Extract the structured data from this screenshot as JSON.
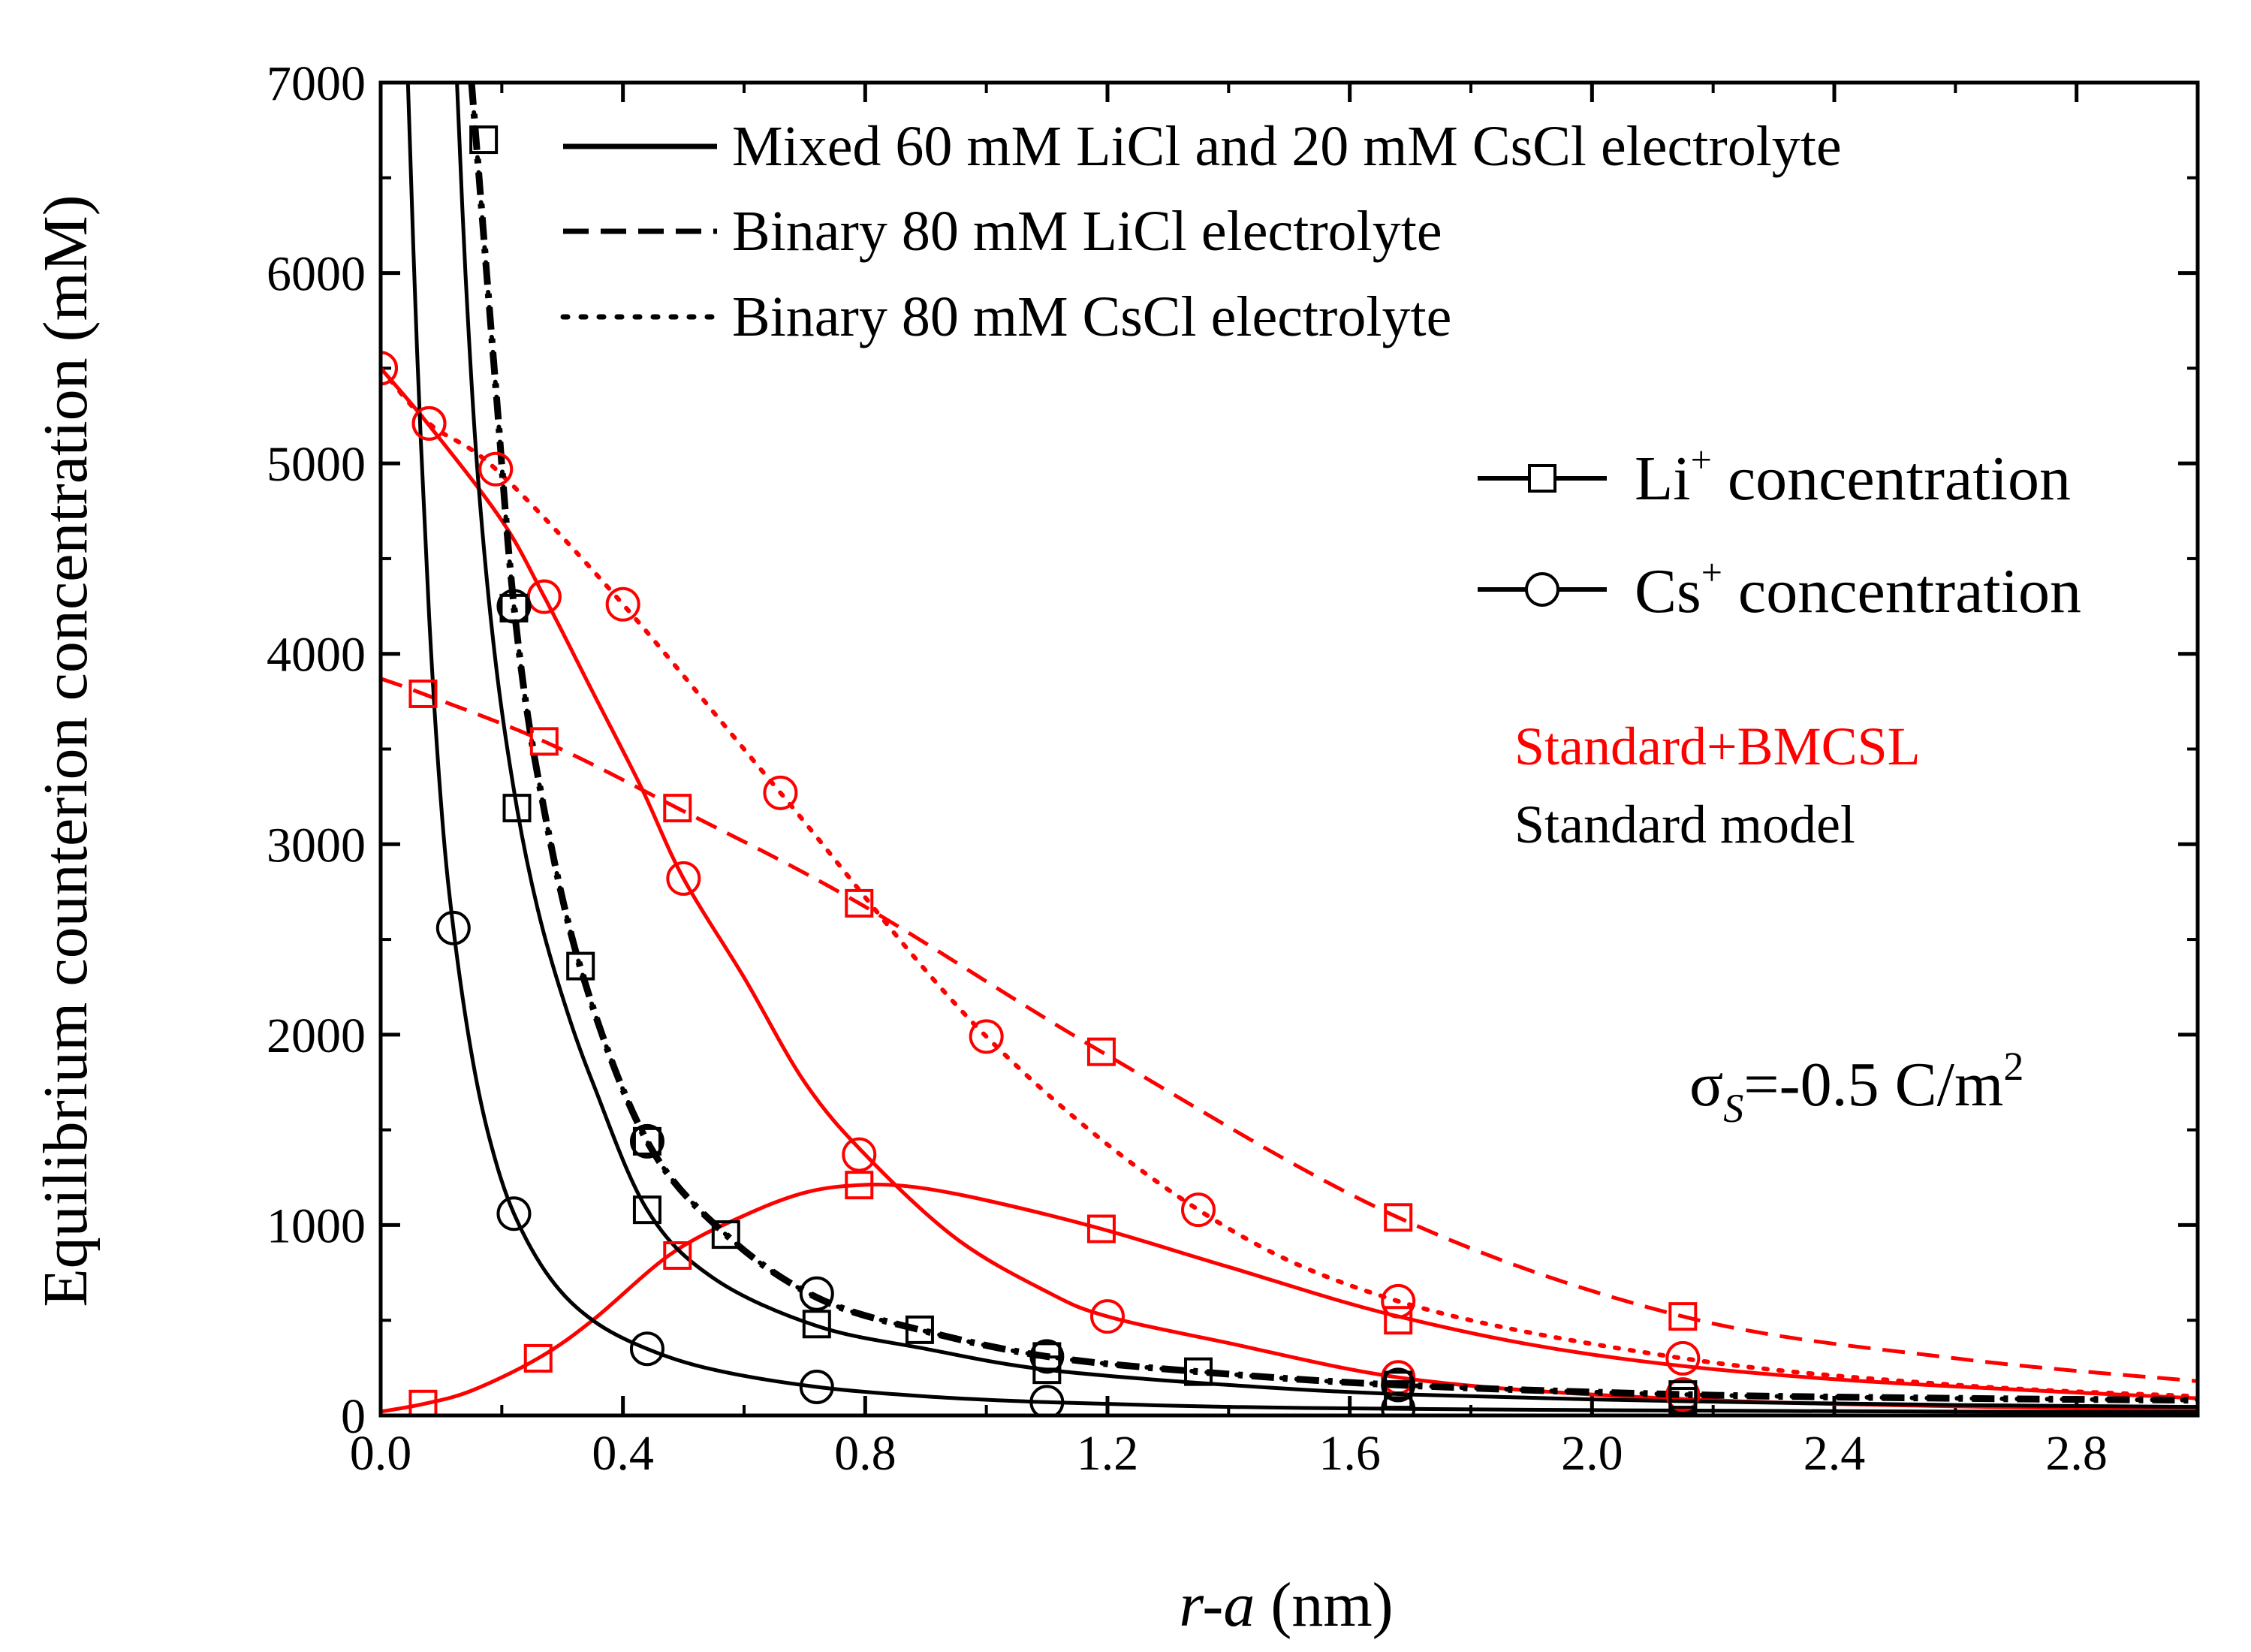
{
  "chart_data": {
    "type": "line",
    "ylabel": "Equilibrium counterion concentration (mM)",
    "xlabel": {
      "italic": "r-a",
      "rest": " (nm)"
    },
    "xlim": [
      0,
      3.0
    ],
    "ylim": [
      0,
      7000
    ],
    "xticks": [
      0.0,
      0.4,
      0.8,
      1.2,
      1.6,
      2.0,
      2.4,
      2.8
    ],
    "xtick_labels": [
      "0.0",
      "0.4",
      "0.8",
      "1.2",
      "1.6",
      "2.0",
      "2.4",
      "2.8"
    ],
    "yticks": [
      0,
      1000,
      2000,
      3000,
      4000,
      5000,
      6000,
      7000
    ],
    "ytick_labels": [
      "0",
      "1000",
      "2000",
      "3000",
      "4000",
      "5000",
      "6000",
      "7000"
    ],
    "legend_linestyles": [
      {
        "style": "solid",
        "label": "Mixed 60 mM LiCl and 20 mM CsCl electrolyte"
      },
      {
        "style": "dashed",
        "label": "Binary 80 mM LiCl electrolyte"
      },
      {
        "style": "dotted",
        "label": "Binary 80 mM CsCl electrolyte"
      }
    ],
    "legend_markers": [
      {
        "marker": "square",
        "label_main": "Li",
        "label_sup": "+",
        "label_rest": " concentration"
      },
      {
        "marker": "circle",
        "label_main": "Cs",
        "label_sup": "+",
        "label_rest": " concentration"
      }
    ],
    "model_labels": [
      {
        "text": "Standard+BMCSL",
        "color": "#ff0000"
      },
      {
        "text": "Standard model",
        "color": "#000000"
      }
    ],
    "annotation": {
      "sigma": "σ",
      "sub": "S",
      "value": "=-0.5 C/m",
      "sup": "2"
    },
    "series": [
      {
        "name": "Mixed Li+ (Standard+BMCSL)",
        "color": "#ff0000",
        "dash": "solid",
        "marker": "square",
        "x": [
          0,
          0.07,
          0.15,
          0.26,
          0.35,
          0.48,
          0.6,
          0.7,
          0.79,
          0.88,
          1.0,
          1.19,
          1.4,
          1.68,
          2.0,
          2.4,
          3.0
        ],
        "y": [
          20,
          60,
          130,
          300,
          500,
          850,
          1050,
          1170,
          1210,
          1200,
          1130,
          980,
          780,
          520,
          320,
          190,
          90
        ],
        "marker_x": [
          0.07,
          0.26,
          0.49,
          0.79,
          1.19,
          1.68
        ],
        "marker_y": [
          60,
          300,
          840,
          1210,
          980,
          500
        ]
      },
      {
        "name": "Mixed Cs+ (Standard+BMCSL)",
        "color": "#ff0000",
        "dash": "solid",
        "marker": "circle",
        "x": [
          0,
          0.08,
          0.2,
          0.27,
          0.35,
          0.43,
          0.5,
          0.6,
          0.7,
          0.8,
          0.95,
          1.1,
          1.2,
          1.4,
          1.68,
          2.0,
          2.4,
          3.0
        ],
        "y": [
          5500,
          5200,
          4700,
          4300,
          3800,
          3300,
          2820,
          2300,
          1750,
          1370,
          930,
          650,
          520,
          380,
          200,
          110,
          60,
          30
        ],
        "marker_x": [
          0.0,
          0.08,
          0.27,
          0.5,
          0.79,
          1.2,
          1.68,
          2.15
        ],
        "marker_y": [
          5500,
          5210,
          4300,
          2820,
          1370,
          520,
          200,
          110
        ]
      },
      {
        "name": "Binary LiCl Li+ (Standard+BMCSL)",
        "color": "#ff0000",
        "dash": "dashed",
        "marker": "square",
        "x": [
          0,
          0.07,
          0.27,
          0.49,
          0.79,
          1.19,
          1.68,
          2.15,
          2.6,
          3.0
        ],
        "y": [
          3870,
          3790,
          3540,
          3190,
          2690,
          1910,
          1040,
          520,
          300,
          180
        ],
        "marker_x": [
          0.07,
          0.27,
          0.49,
          0.79,
          1.19,
          1.68,
          2.15
        ],
        "marker_y": [
          3790,
          3540,
          3190,
          2690,
          1910,
          1040,
          520
        ]
      },
      {
        "name": "Binary CsCl Cs+ (Standard+BMCSL)",
        "color": "#ff0000",
        "dash": "dotted",
        "marker": "circle",
        "x": [
          0,
          0.08,
          0.19,
          0.4,
          0.66,
          1.0,
          1.35,
          1.68,
          2.15,
          2.6,
          3.0
        ],
        "y": [
          5500,
          5210,
          4970,
          4260,
          3270,
          1990,
          1080,
          600,
          300,
          160,
          100
        ],
        "marker_x": [
          0.0,
          0.08,
          0.19,
          0.27,
          0.4,
          0.66,
          1.0,
          1.35,
          1.68,
          2.15
        ],
        "marker_y": [
          5500,
          5210,
          4970,
          4300,
          4260,
          3270,
          1990,
          1080,
          600,
          300
        ]
      },
      {
        "name": "Mixed Li+ (Standard model)",
        "color": "#000000",
        "dash": "solid",
        "marker": "square",
        "x": [
          0.126,
          0.14,
          0.16,
          0.19,
          0.225,
          0.26,
          0.3,
          0.35,
          0.44,
          0.55,
          0.72,
          0.9,
          1.1,
          1.4,
          1.7,
          2.15,
          2.6,
          3.0
        ],
        "y": [
          7000,
          6000,
          4950,
          3950,
          3190,
          2650,
          2200,
          1750,
          1080,
          720,
          470,
          350,
          240,
          160,
          110,
          75,
          55,
          45
        ],
        "marker_x": [
          0.225,
          0.44,
          0.72,
          1.1,
          1.68,
          2.15
        ],
        "marker_y": [
          3190,
          1080,
          480,
          240,
          110,
          75
        ]
      },
      {
        "name": "Mixed Cs+ (Standard model)",
        "color": "#000000",
        "dash": "solid",
        "marker": "circle",
        "x": [
          0.045,
          0.06,
          0.08,
          0.1,
          0.12,
          0.15,
          0.18,
          0.22,
          0.28,
          0.35,
          0.44,
          0.55,
          0.72,
          0.9,
          1.1,
          1.4,
          1.68,
          2.0,
          2.6,
          3.0
        ],
        "y": [
          7000,
          5600,
          4200,
          3200,
          2560,
          1900,
          1450,
          1060,
          720,
          500,
          350,
          240,
          150,
          100,
          70,
          45,
          35,
          28,
          20,
          18
        ],
        "marker_x": [
          0.12,
          0.22,
          0.44,
          0.72,
          1.1,
          1.68
        ],
        "marker_y": [
          2560,
          1060,
          350,
          150,
          70,
          35
        ]
      },
      {
        "name": "Binary LiCl Li+ (Standard model)",
        "color": "#000000",
        "dash": "dashdot",
        "marker": "square",
        "x": [
          0.15,
          0.17,
          0.19,
          0.22,
          0.26,
          0.33,
          0.44,
          0.57,
          0.72,
          0.89,
          1.1,
          1.35,
          1.68,
          2.15,
          2.6,
          3.0
        ],
        "y": [
          7000,
          6200,
          5400,
          4250,
          3350,
          2350,
          1440,
          950,
          620,
          450,
          310,
          230,
          160,
          110,
          90,
          80
        ],
        "marker_x": [
          0.17,
          0.22,
          0.33,
          0.44,
          0.57,
          0.89,
          1.1,
          1.35,
          1.68,
          2.15
        ],
        "marker_y": [
          6700,
          4240,
          2360,
          1440,
          950,
          450,
          310,
          230,
          160,
          110
        ]
      },
      {
        "name": "Binary CsCl Cs+ (Standard model)",
        "color": "#000000",
        "dash": "dotted",
        "marker": "circle",
        "x": [
          0.15,
          0.17,
          0.19,
          0.22,
          0.26,
          0.33,
          0.44,
          0.57,
          0.72,
          0.89,
          1.1,
          1.35,
          1.68,
          2.15,
          2.6,
          3.0
        ],
        "y": [
          7000,
          6200,
          5400,
          4250,
          3350,
          2350,
          1440,
          950,
          620,
          450,
          310,
          230,
          160,
          110,
          90,
          80
        ],
        "marker_x": [
          0.22,
          0.44,
          0.72,
          1.1,
          1.68
        ],
        "marker_y": [
          4250,
          1440,
          640,
          310,
          160
        ]
      }
    ]
  }
}
